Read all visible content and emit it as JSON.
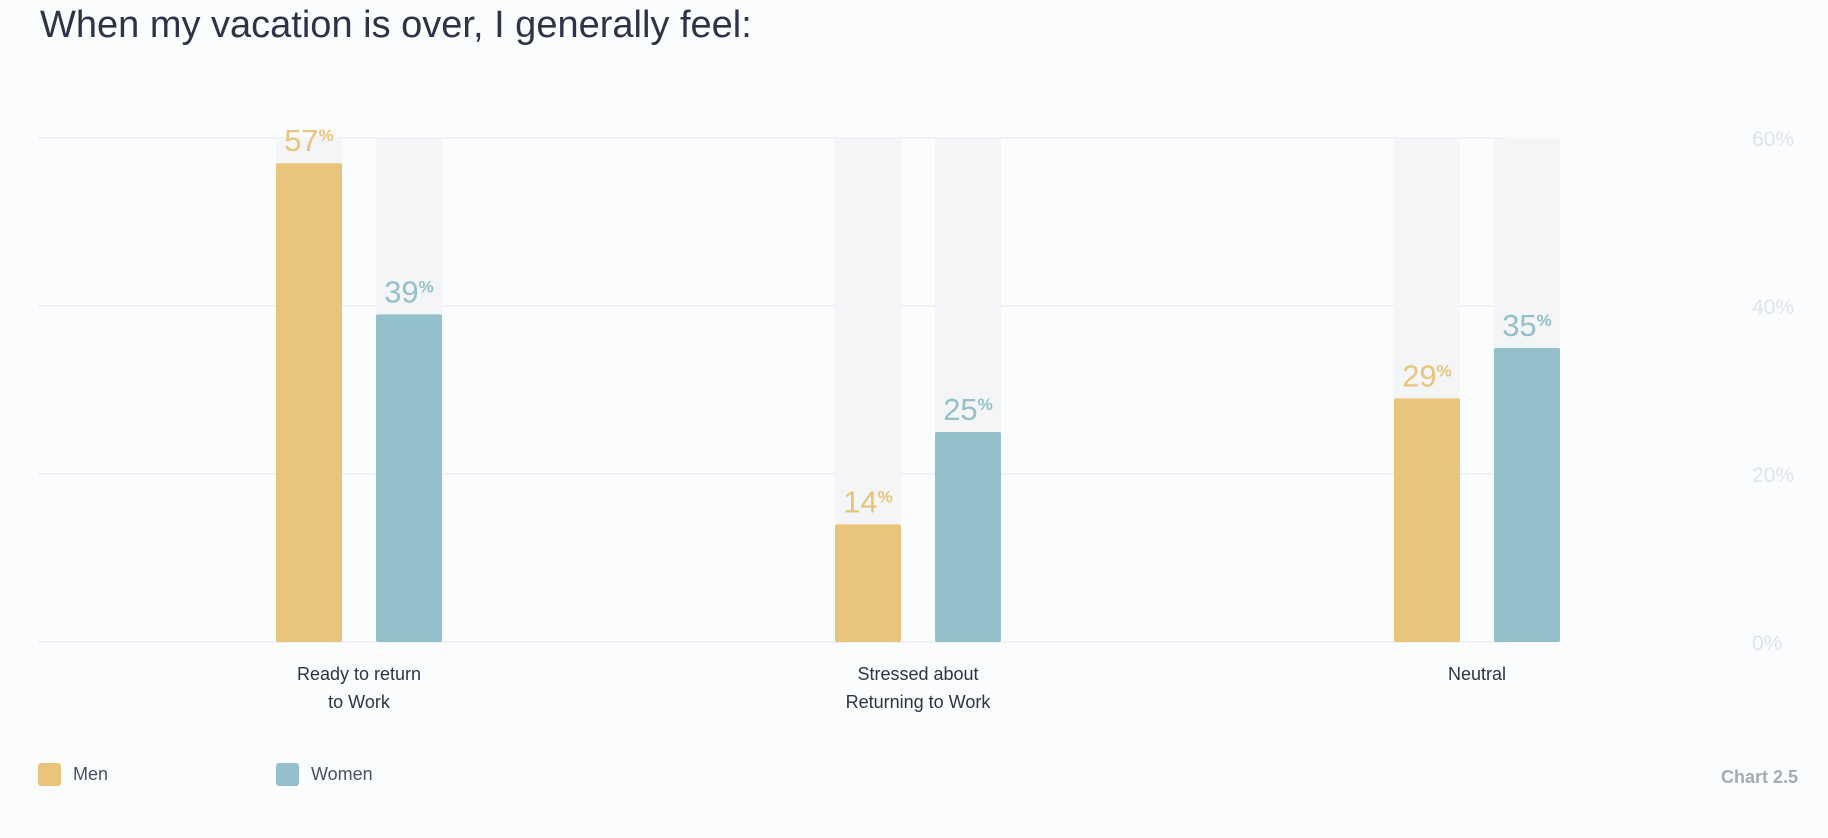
{
  "chart_data": {
    "type": "bar",
    "title": "When my vacation is over, I generally feel:",
    "categories": [
      "Ready to return\nto Work",
      "Stressed about\nReturning to Work",
      "Neutral"
    ],
    "series": [
      {
        "name": "Men",
        "values": [
          57,
          14,
          29
        ],
        "color": "#e9c47b"
      },
      {
        "name": "Women",
        "values": [
          39,
          25,
          35
        ],
        "color": "#93c0ca"
      }
    ],
    "ylim": [
      0,
      60
    ],
    "yticks": [
      0,
      20,
      40,
      60
    ],
    "ytick_suffix": "%",
    "value_suffix": "%",
    "grid": true,
    "legend_position": "bottom-left",
    "track_color": "#f4f5f6",
    "grid_color": "#e3e6ea",
    "tick_label_color": "#e0e3e7",
    "category_label_color": "#2f3347"
  },
  "footer": {
    "chart_id": "Chart 2.5"
  }
}
